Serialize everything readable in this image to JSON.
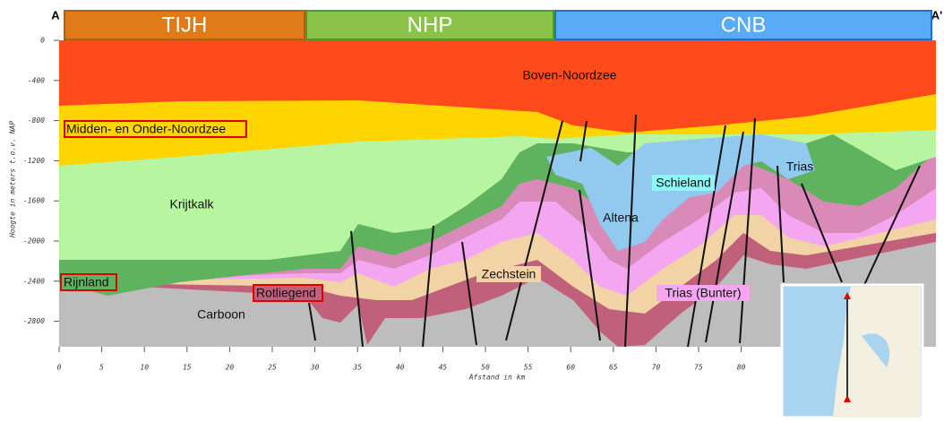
{
  "header": {
    "left_marker": "A",
    "right_marker": "A'",
    "zones": [
      {
        "label": "TIJH"
      },
      {
        "label": "NHP"
      },
      {
        "label": "CNB"
      }
    ]
  },
  "axes": {
    "y_title": "Hoogte in meters t.o.v. NAP",
    "x_title": "Afstand in km",
    "yticks": [
      0,
      -400,
      -800,
      -1200,
      -1600,
      -2000,
      -2400,
      -2800
    ],
    "xticks": [
      0,
      5,
      10,
      15,
      20,
      25,
      30,
      35,
      40,
      45,
      50,
      55,
      60,
      65,
      70,
      75,
      80
    ]
  },
  "labels": {
    "boven": "Boven-Noordzee",
    "midden": "Midden- en Onder-Noordzee",
    "krijtkalk": "Krijtkalk",
    "rijnland": "Rijnland",
    "rotliegend": "Rotliegend",
    "carboon": "Carboon",
    "zechstein": "Zechstein",
    "altena": "Altena",
    "schieland": "Schieland",
    "trias": "Trias",
    "bunter": "Trias (Bunter)"
  }
}
